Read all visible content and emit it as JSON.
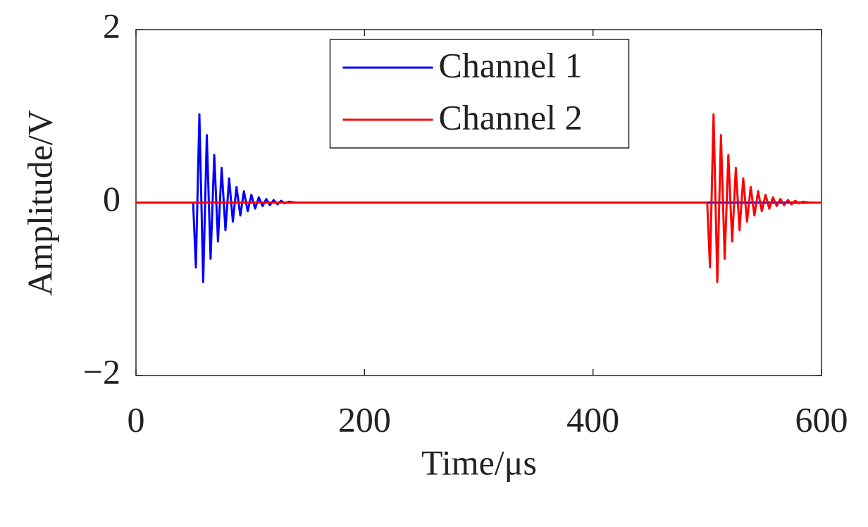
{
  "chart_data": {
    "type": "line",
    "xlabel": "Time/μs",
    "ylabel": "Amplitude/V",
    "xlim": [
      0,
      600
    ],
    "xticks": [
      0,
      200,
      400,
      600
    ],
    "ylim": [
      -2,
      2
    ],
    "yticks": [
      {
        "value": -2,
        "label": "−2"
      },
      0,
      2
    ],
    "legend": "upper center",
    "series": [
      {
        "name": "Channel 1",
        "color": "#0000ff",
        "x": [
          0,
          50,
          52.4,
          55.5,
          58.8,
          62,
          65.3,
          68.5,
          71.8,
          75,
          78.3,
          81.5,
          84.8,
          88,
          91.3,
          94.5,
          97.8,
          101,
          104.3,
          107.5,
          110.8,
          114,
          117.3,
          120.5,
          123.8,
          127,
          130.3,
          133.5,
          140,
          600
        ],
        "values": [
          0,
          0,
          -0.75,
          1.02,
          -0.92,
          0.78,
          -0.65,
          0.55,
          -0.45,
          0.4,
          -0.32,
          0.28,
          -0.22,
          0.18,
          -0.15,
          0.13,
          -0.1,
          0.09,
          -0.07,
          0.06,
          -0.04,
          0.04,
          -0.03,
          0.03,
          -0.02,
          0.02,
          -0.01,
          0.01,
          0,
          0
        ]
      },
      {
        "name": "Channel 2",
        "color": "#ff0000",
        "x": [
          0,
          500,
          502.4,
          505.5,
          508.8,
          512,
          515.3,
          518.5,
          521.8,
          525,
          528.3,
          531.5,
          534.8,
          538,
          541.3,
          544.5,
          547.8,
          551,
          554.3,
          557.5,
          560.8,
          564,
          567.3,
          570.5,
          573.8,
          577,
          580.3,
          583.5,
          590,
          600
        ],
        "values": [
          0,
          0,
          -0.75,
          1.02,
          -0.92,
          0.78,
          -0.65,
          0.55,
          -0.45,
          0.4,
          -0.32,
          0.28,
          -0.22,
          0.18,
          -0.15,
          0.13,
          -0.1,
          0.09,
          -0.07,
          0.06,
          -0.04,
          0.04,
          -0.03,
          0.03,
          -0.02,
          0.02,
          -0.01,
          0.01,
          0,
          0
        ]
      }
    ]
  }
}
